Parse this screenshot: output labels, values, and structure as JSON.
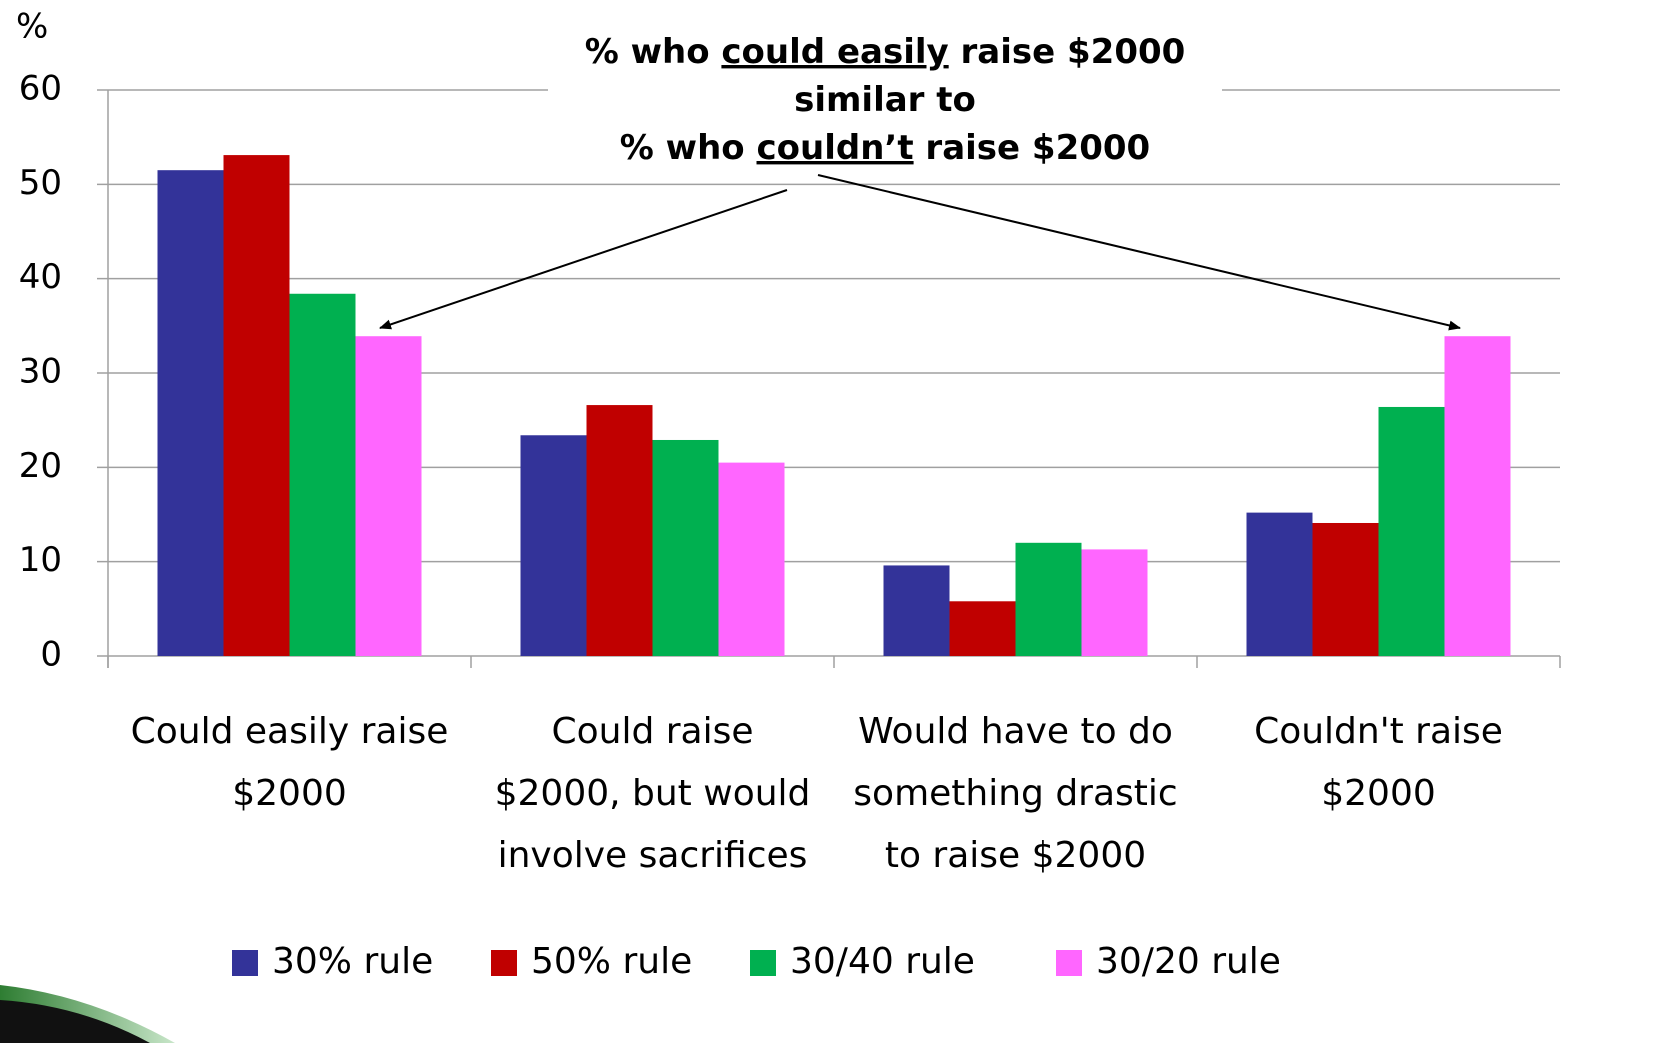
{
  "chart_data": {
    "type": "bar",
    "y_label": "%",
    "annotation": [
      [
        "% who ",
        "could easily",
        " raise $2000"
      ],
      [
        "similar to"
      ],
      [
        "% who ",
        "couldn’t",
        " raise $2000"
      ]
    ],
    "categories": [
      "Could easily raise\n$2000",
      "Could raise\n$2000, but would\ninvolve sacrifices",
      "Would have to do\nsomething drastic\nto raise $2000",
      "Couldn't raise\n$2000"
    ],
    "series": [
      {
        "name": "30% rule",
        "color": "#333399",
        "values": [
          51.5,
          23.4,
          9.6,
          15.2
        ]
      },
      {
        "name": "50% rule",
        "color": "#c00000",
        "values": [
          53.1,
          26.6,
          5.8,
          14.1
        ]
      },
      {
        "name": "30/40 rule",
        "color": "#00b050",
        "values": [
          38.4,
          22.9,
          12.0,
          26.4
        ]
      },
      {
        "name": "30/20 rule",
        "color": "#ff66ff",
        "values": [
          33.9,
          20.5,
          11.3,
          33.9
        ]
      }
    ],
    "ylim": [
      0,
      60
    ],
    "yticks": [
      0,
      10,
      20,
      30,
      40,
      50,
      60
    ],
    "grid": true,
    "legend": "bottom"
  }
}
